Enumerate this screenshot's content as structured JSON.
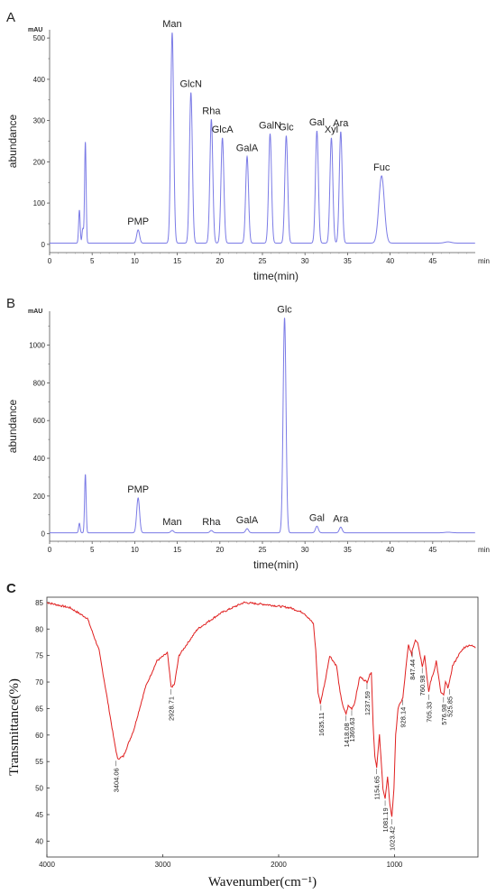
{
  "chart_data": [
    {
      "type": "line",
      "panel_label": "A",
      "unit_label": "mAU",
      "xlabel": "time(min)",
      "ylabel": "abundance",
      "x_unit_label": "min",
      "xlim": [
        0,
        50
      ],
      "ylim": [
        -20,
        520
      ],
      "x_ticks": [
        "0",
        "5",
        "10",
        "15",
        "20",
        "25",
        "30",
        "35",
        "40",
        "45"
      ],
      "y_ticks": [
        "0",
        "100",
        "200",
        "300",
        "400",
        "500"
      ],
      "line_color": "#7b7be6",
      "baseline": 3,
      "peaks": [
        {
          "x": 3.5,
          "y": 80,
          "label": ""
        },
        {
          "x": 3.9,
          "y": 35,
          "label": ""
        },
        {
          "x": 4.2,
          "y": 245,
          "label": ""
        },
        {
          "x": 10.4,
          "y": 32,
          "label": "PMP"
        },
        {
          "x": 14.4,
          "y": 510,
          "label": "Man"
        },
        {
          "x": 16.6,
          "y": 365,
          "label": "GlcN"
        },
        {
          "x": 19.0,
          "y": 300,
          "label": "Rha"
        },
        {
          "x": 20.3,
          "y": 255,
          "label": "GlcA"
        },
        {
          "x": 23.2,
          "y": 210,
          "label": "GalA"
        },
        {
          "x": 25.9,
          "y": 265,
          "label": "GalN"
        },
        {
          "x": 27.8,
          "y": 260,
          "label": "Glc"
        },
        {
          "x": 31.4,
          "y": 272,
          "label": "Gal"
        },
        {
          "x": 33.1,
          "y": 255,
          "label": "Xyl"
        },
        {
          "x": 34.2,
          "y": 270,
          "label": "Ara"
        },
        {
          "x": 39.0,
          "y": 163,
          "label": "Fuc"
        }
      ]
    },
    {
      "type": "line",
      "panel_label": "B",
      "unit_label": "mAU",
      "xlabel": "time(min)",
      "ylabel": "abundance",
      "x_unit_label": "min",
      "xlim": [
        0,
        50
      ],
      "ylim": [
        -40,
        1180
      ],
      "x_ticks": [
        "0",
        "5",
        "10",
        "15",
        "20",
        "25",
        "30",
        "35",
        "40",
        "45"
      ],
      "y_ticks": [
        "0",
        "200",
        "400",
        "600",
        "800",
        "1000"
      ],
      "line_color": "#7b7be6",
      "baseline": 5,
      "peaks": [
        {
          "x": 3.5,
          "y": 50,
          "label": ""
        },
        {
          "x": 4.2,
          "y": 310,
          "label": ""
        },
        {
          "x": 10.4,
          "y": 185,
          "label": "PMP"
        },
        {
          "x": 14.4,
          "y": 12,
          "label": "Man"
        },
        {
          "x": 19.0,
          "y": 12,
          "label": "Rha"
        },
        {
          "x": 23.2,
          "y": 22,
          "label": "GalA"
        },
        {
          "x": 27.6,
          "y": 1140,
          "label": "Glc"
        },
        {
          "x": 31.4,
          "y": 35,
          "label": "Gal"
        },
        {
          "x": 34.2,
          "y": 30,
          "label": "Ara"
        }
      ]
    },
    {
      "type": "line",
      "panel_label": "C",
      "xlabel": "Wavenumber(cm⁻¹)",
      "ylabel": "Transmittance(%)",
      "xlim": [
        4000,
        280
      ],
      "ylim": [
        37,
        86
      ],
      "x_ticks": [
        "4000",
        "3000",
        "2000",
        "1000"
      ],
      "y_ticks": [
        "40",
        "45",
        "50",
        "55",
        "60",
        "65",
        "70",
        "75",
        "80",
        "85"
      ],
      "line_color": "#e02020",
      "series": [
        {
          "x": [
            4000,
            3800,
            3650,
            3550,
            3480,
            3420,
            3390,
            3340,
            3250,
            3150,
            3050,
            2960,
            2928,
            2900,
            2860,
            2700,
            2500,
            2300,
            2100,
            1900,
            1780,
            1700,
            1680,
            1660,
            1640,
            1600,
            1560,
            1500,
            1470,
            1440,
            1418,
            1400,
            1369,
            1345,
            1300,
            1237,
            1220,
            1200,
            1185,
            1170,
            1154,
            1130,
            1100,
            1081,
            1060,
            1040,
            1023,
            1005,
            990,
            970,
            950,
            928,
            900,
            880,
            850,
            847,
            820,
            800,
            760,
            740,
            720,
            705,
            690,
            660,
            640,
            600,
            576,
            560,
            540,
            525,
            500,
            450,
            400,
            350,
            300
          ],
          "y": [
            85,
            84,
            82,
            76,
            67,
            59,
            55.5,
            56,
            61,
            69,
            74,
            75.5,
            69,
            69.5,
            75,
            80,
            83,
            85,
            84.6,
            84,
            83,
            81,
            76,
            68,
            66,
            70,
            75,
            73,
            68,
            65,
            64,
            65.5,
            65,
            66,
            71,
            70,
            71,
            72,
            62,
            56,
            54,
            60,
            50,
            48,
            52,
            47,
            44.5,
            50,
            60,
            65,
            66,
            67,
            73,
            77,
            75,
            76,
            78,
            77.5,
            73,
            75,
            71,
            68,
            70,
            72,
            74,
            68,
            67.5,
            70,
            69,
            70,
            73,
            75,
            76.5,
            77,
            76.5
          ]
        }
      ],
      "annotations": [
        {
          "x": 3404.06,
          "y": 55.5,
          "label": "3404.06"
        },
        {
          "x": 2928.71,
          "y": 69,
          "label": "2928.71"
        },
        {
          "x": 1635.11,
          "y": 66,
          "label": "1635.11"
        },
        {
          "x": 1418.08,
          "y": 64,
          "label": "1418.08"
        },
        {
          "x": 1369.63,
          "y": 65,
          "label": "1369.63"
        },
        {
          "x": 1237.59,
          "y": 70,
          "label": "1237.59"
        },
        {
          "x": 1154.65,
          "y": 54,
          "label": "1154.65"
        },
        {
          "x": 1081.19,
          "y": 48,
          "label": "1081.19"
        },
        {
          "x": 1023.42,
          "y": 44.5,
          "label": "1023.42"
        },
        {
          "x": 928.14,
          "y": 67,
          "label": "928.14"
        },
        {
          "x": 847.44,
          "y": 76,
          "label": "847.44"
        },
        {
          "x": 760.98,
          "y": 73,
          "label": "760.98"
        },
        {
          "x": 705.33,
          "y": 68,
          "label": "705.33"
        },
        {
          "x": 576.98,
          "y": 67.5,
          "label": "576.98"
        },
        {
          "x": 525.85,
          "y": 69,
          "label": "525.85"
        }
      ]
    }
  ]
}
